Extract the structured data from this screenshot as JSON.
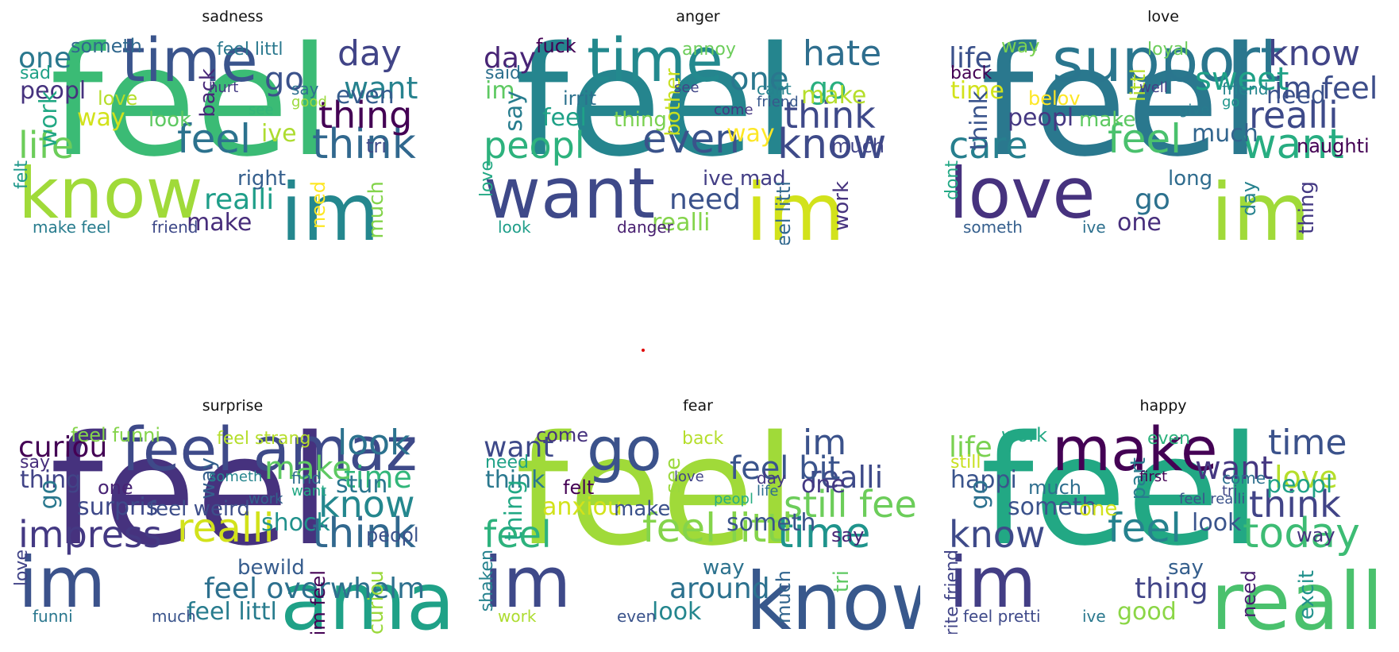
{
  "panels": [
    {
      "title": "sadness",
      "words": [
        {
          "t": "feel",
          "c": "#3bbb75"
        },
        {
          "t": "know",
          "c": "#a0da39"
        },
        {
          "t": "im",
          "c": "#24878e"
        },
        {
          "t": "time",
          "c": "#3a548c"
        },
        {
          "t": "life",
          "c": "#6ccd5a"
        },
        {
          "t": "day",
          "c": "#414487"
        },
        {
          "t": "think",
          "c": "#31688e"
        },
        {
          "t": "thing",
          "c": "#440154"
        },
        {
          "t": "want",
          "c": "#26828e"
        },
        {
          "t": "go",
          "c": "#3b528b"
        },
        {
          "t": "feel",
          "c": "#2c728e"
        },
        {
          "t": "one",
          "c": "#2a788e"
        },
        {
          "t": "peopl",
          "c": "#46327e"
        },
        {
          "t": "way",
          "c": "#d2e21b"
        },
        {
          "t": "look",
          "c": "#5ec962"
        },
        {
          "t": "work",
          "c": "#22a884"
        },
        {
          "t": "realli",
          "c": "#1f9e89"
        },
        {
          "t": "make",
          "c": "#472d7b"
        },
        {
          "t": "even",
          "c": "#365c8d"
        },
        {
          "t": "ive",
          "c": "#addc30"
        },
        {
          "t": "someth",
          "c": "#31688e"
        },
        {
          "t": "feel littl",
          "c": "#2a788e"
        },
        {
          "t": "right",
          "c": "#355f8d"
        },
        {
          "t": "tri",
          "c": "#3e4a89"
        },
        {
          "t": "need",
          "c": "#fde725"
        },
        {
          "t": "much",
          "c": "#84d44b"
        },
        {
          "t": "back",
          "c": "#482878"
        },
        {
          "t": "love",
          "c": "#b5de2b"
        },
        {
          "t": "make feel",
          "c": "#287c8e"
        },
        {
          "t": "friend",
          "c": "#3e4989"
        },
        {
          "t": "sad",
          "c": "#1fa187"
        },
        {
          "t": "say",
          "c": "#2d708e"
        },
        {
          "t": "good",
          "c": "#9bd93c"
        },
        {
          "t": "see",
          "c": "#32b67a"
        },
        {
          "t": "felt",
          "c": "#1f988b"
        },
        {
          "t": "hurt",
          "c": "#443983"
        }
      ]
    },
    {
      "title": "anger",
      "words": [
        {
          "t": "feel",
          "c": "#25858e"
        },
        {
          "t": "want",
          "c": "#3e4989"
        },
        {
          "t": "im",
          "c": "#d2e21b"
        },
        {
          "t": "time",
          "c": "#23898e"
        },
        {
          "t": "peopl",
          "c": "#2db27d"
        },
        {
          "t": "hate",
          "c": "#2e6e8e"
        },
        {
          "t": "know",
          "c": "#3e4a89"
        },
        {
          "t": "think",
          "c": "#3e4989"
        },
        {
          "t": "go",
          "c": "#29af7f"
        },
        {
          "t": "one",
          "c": "#2a778e"
        },
        {
          "t": "even",
          "c": "#3a538b"
        },
        {
          "t": "day",
          "c": "#482576"
        },
        {
          "t": "im",
          "c": "#5ec962"
        },
        {
          "t": "feel",
          "c": "#1fa187"
        },
        {
          "t": "thing",
          "c": "#7ad151"
        },
        {
          "t": "say",
          "c": "#287d8e"
        },
        {
          "t": "need",
          "c": "#3b528b"
        },
        {
          "t": "realli",
          "c": "#84d44b"
        },
        {
          "t": "make",
          "c": "#b5de2b"
        },
        {
          "t": "way",
          "c": "#fde725"
        },
        {
          "t": "fuck",
          "c": "#440154"
        },
        {
          "t": "annoy",
          "c": "#6ccd5a"
        },
        {
          "t": "ive mad",
          "c": "#433e85"
        },
        {
          "t": "much",
          "c": "#414487"
        },
        {
          "t": "feel littl",
          "c": "#31688e"
        },
        {
          "t": "work",
          "c": "#46337e"
        },
        {
          "t": "bother",
          "c": "#c8e020"
        },
        {
          "t": "irrit",
          "c": "#2c718e"
        },
        {
          "t": "look",
          "c": "#1f9e89"
        },
        {
          "t": "danger",
          "c": "#481f70"
        },
        {
          "t": "said",
          "c": "#2d708e"
        },
        {
          "t": "cant",
          "c": "#26828e"
        },
        {
          "t": "friend",
          "c": "#38588c"
        },
        {
          "t": "come",
          "c": "#453781"
        },
        {
          "t": "love",
          "c": "#22a884"
        },
        {
          "t": "see",
          "c": "#404688"
        }
      ]
    },
    {
      "title": "love",
      "words": [
        {
          "t": "feel",
          "c": "#2a788e"
        },
        {
          "t": "love",
          "c": "#46327e"
        },
        {
          "t": "im",
          "c": "#a0da39"
        },
        {
          "t": "support",
          "c": "#2a768e"
        },
        {
          "t": "care",
          "c": "#277f8e"
        },
        {
          "t": "know",
          "c": "#414487"
        },
        {
          "t": "want",
          "c": "#27ad81"
        },
        {
          "t": "realli",
          "c": "#3e4a89"
        },
        {
          "t": "im feel",
          "c": "#3d4e8a"
        },
        {
          "t": "sweet",
          "c": "#1fa187"
        },
        {
          "t": "feel",
          "c": "#4ac16d"
        },
        {
          "t": "life",
          "c": "#3b518b"
        },
        {
          "t": "time",
          "c": "#d2e21b"
        },
        {
          "t": "peopl",
          "c": "#453882"
        },
        {
          "t": "make",
          "c": "#5ec962"
        },
        {
          "t": "think",
          "c": "#3a548c"
        },
        {
          "t": "go",
          "c": "#2c718e"
        },
        {
          "t": "one",
          "c": "#472e7c"
        },
        {
          "t": "need",
          "c": "#3b528b"
        },
        {
          "t": "much",
          "c": "#32658e"
        },
        {
          "t": "way",
          "c": "#7ad151"
        },
        {
          "t": "loyal",
          "c": "#6ccd5a"
        },
        {
          "t": "long",
          "c": "#2f6c8e"
        },
        {
          "t": "naughti",
          "c": "#440154"
        },
        {
          "t": "day",
          "c": "#26828e"
        },
        {
          "t": "thing",
          "c": "#443983"
        },
        {
          "t": "littl",
          "c": "#b5de2b"
        },
        {
          "t": "belov",
          "c": "#fde725"
        },
        {
          "t": "someth",
          "c": "#355f8d"
        },
        {
          "t": "ive",
          "c": "#2d708e"
        },
        {
          "t": "back",
          "c": "#440154"
        },
        {
          "t": "friend",
          "c": "#25848e"
        },
        {
          "t": "go",
          "c": "#1f968b"
        },
        {
          "t": "give",
          "c": "#287c8e"
        },
        {
          "t": "dont",
          "c": "#22a884"
        },
        {
          "t": "well",
          "c": "#433e85"
        }
      ]
    },
    {
      "title": "surprise",
      "words": [
        {
          "t": "feel",
          "c": "#46327e"
        },
        {
          "t": "im",
          "c": "#3b528b"
        },
        {
          "t": "amaz",
          "c": "#1fa187"
        },
        {
          "t": "feel amaz",
          "c": "#3e4a89"
        },
        {
          "t": "impress",
          "c": "#443983"
        },
        {
          "t": "look",
          "c": "#2c728e"
        },
        {
          "t": "think",
          "c": "#31688e"
        },
        {
          "t": "know",
          "c": "#24878e"
        },
        {
          "t": "time",
          "c": "#32b67a"
        },
        {
          "t": "make",
          "c": "#5ec962"
        },
        {
          "t": "realli",
          "c": "#d2e21b"
        },
        {
          "t": "curiou",
          "c": "#440154"
        },
        {
          "t": "thing",
          "c": "#414487"
        },
        {
          "t": "surpris",
          "c": "#3e4989"
        },
        {
          "t": "feel weird",
          "c": "#3d4e8a"
        },
        {
          "t": "go",
          "c": "#2a788e"
        },
        {
          "t": "feel overwhelm",
          "c": "#2d708e"
        },
        {
          "t": "feel littl",
          "c": "#287c8e"
        },
        {
          "t": "stun",
          "c": "#2a768e"
        },
        {
          "t": "shock",
          "c": "#21918c"
        },
        {
          "t": "feel funni",
          "c": "#84d44b"
        },
        {
          "t": "feel strang",
          "c": "#b5de2b"
        },
        {
          "t": "bewild",
          "c": "#365c8d"
        },
        {
          "t": "peopl",
          "c": "#3b528b"
        },
        {
          "t": "im feel",
          "c": "#440154"
        },
        {
          "t": "feel curiou",
          "c": "#9bd93c"
        },
        {
          "t": "way",
          "c": "#355f8d"
        },
        {
          "t": "one",
          "c": "#482475"
        },
        {
          "t": "funni",
          "c": "#2a778e"
        },
        {
          "t": "much",
          "c": "#3a548c"
        },
        {
          "t": "say",
          "c": "#472e7c"
        },
        {
          "t": "find",
          "c": "#2e6e8e"
        },
        {
          "t": "want",
          "c": "#22a884"
        },
        {
          "t": "work",
          "c": "#33638d"
        },
        {
          "t": "love",
          "c": "#414487"
        },
        {
          "t": "someth",
          "c": "#25858e"
        }
      ]
    },
    {
      "title": "fear",
      "words": [
        {
          "t": "feel",
          "c": "#a0da39"
        },
        {
          "t": "im",
          "c": "#3e4989"
        },
        {
          "t": "know",
          "c": "#38588c"
        },
        {
          "t": "go",
          "c": "#3b528b"
        },
        {
          "t": "feel",
          "c": "#2db27d"
        },
        {
          "t": "im",
          "c": "#3b528b"
        },
        {
          "t": "time",
          "c": "#1f948c"
        },
        {
          "t": "still feel",
          "c": "#6ccd5a"
        },
        {
          "t": "realli",
          "c": "#3e4a89"
        },
        {
          "t": "feel bit",
          "c": "#3a548c"
        },
        {
          "t": "feel littl",
          "c": "#84d44b"
        },
        {
          "t": "want",
          "c": "#3e4989"
        },
        {
          "t": "think",
          "c": "#2a788e"
        },
        {
          "t": "anxiou",
          "c": "#d2e21b"
        },
        {
          "t": "make",
          "c": "#3b518b"
        },
        {
          "t": "thing",
          "c": "#22a884"
        },
        {
          "t": "around",
          "c": "#2c718e"
        },
        {
          "t": "look",
          "c": "#24868e"
        },
        {
          "t": "one",
          "c": "#443983"
        },
        {
          "t": "someth",
          "c": "#3a538b"
        },
        {
          "t": "come",
          "c": "#46327e"
        },
        {
          "t": "back",
          "c": "#b5de2b"
        },
        {
          "t": "way",
          "c": "#2c728e"
        },
        {
          "t": "say",
          "c": "#482576"
        },
        {
          "t": "much",
          "c": "#32658e"
        },
        {
          "t": "tri",
          "c": "#5ec962"
        },
        {
          "t": "see",
          "c": "#9bd93c"
        },
        {
          "t": "felt",
          "c": "#440154"
        },
        {
          "t": "work",
          "c": "#addc30"
        },
        {
          "t": "even",
          "c": "#3a538b"
        },
        {
          "t": "need",
          "c": "#1fa187"
        },
        {
          "t": "day",
          "c": "#453781"
        },
        {
          "t": "life",
          "c": "#2e6e8e"
        },
        {
          "t": "peopl",
          "c": "#27ad81"
        },
        {
          "t": "shaken",
          "c": "#26828e"
        },
        {
          "t": "love",
          "c": "#414487"
        }
      ]
    },
    {
      "title": "happy",
      "words": [
        {
          "t": "feel",
          "c": "#22a884"
        },
        {
          "t": "im",
          "c": "#433e85"
        },
        {
          "t": "realli",
          "c": "#4ac16d"
        },
        {
          "t": "make",
          "c": "#440154"
        },
        {
          "t": "know",
          "c": "#3e4a89"
        },
        {
          "t": "time",
          "c": "#3b528b"
        },
        {
          "t": "today",
          "c": "#3dbc74"
        },
        {
          "t": "think",
          "c": "#414487"
        },
        {
          "t": "love",
          "c": "#b5de2b"
        },
        {
          "t": "want",
          "c": "#453781"
        },
        {
          "t": "feel",
          "c": "#26828e"
        },
        {
          "t": "life",
          "c": "#7ad151"
        },
        {
          "t": "happi",
          "c": "#3a548c"
        },
        {
          "t": "someth",
          "c": "#3b528b"
        },
        {
          "t": "one",
          "c": "#d2e21b"
        },
        {
          "t": "go",
          "c": "#2c718e"
        },
        {
          "t": "thing",
          "c": "#414487"
        },
        {
          "t": "good",
          "c": "#8bd646"
        },
        {
          "t": "peopl",
          "c": "#1fa187"
        },
        {
          "t": "look",
          "c": "#3a548c"
        },
        {
          "t": "work",
          "c": "#22a884"
        },
        {
          "t": "even",
          "c": "#2db27d"
        },
        {
          "t": "say",
          "c": "#355f8d"
        },
        {
          "t": "way",
          "c": "#46327e"
        },
        {
          "t": "need",
          "c": "#481f70"
        },
        {
          "t": "excit",
          "c": "#21918c"
        },
        {
          "t": "part",
          "c": "#287c8e"
        },
        {
          "t": "much",
          "c": "#2e6e8e"
        },
        {
          "t": "feel pretti",
          "c": "#3e4989"
        },
        {
          "t": "ive",
          "c": "#2a788e"
        },
        {
          "t": "still",
          "c": "#c8e020"
        },
        {
          "t": "come",
          "c": "#2d708e"
        },
        {
          "t": "tri",
          "c": "#404688"
        },
        {
          "t": "feel realli",
          "c": "#3b528b"
        },
        {
          "t": "write friend",
          "c": "#414487"
        },
        {
          "t": "first",
          "c": "#440154"
        }
      ]
    }
  ]
}
